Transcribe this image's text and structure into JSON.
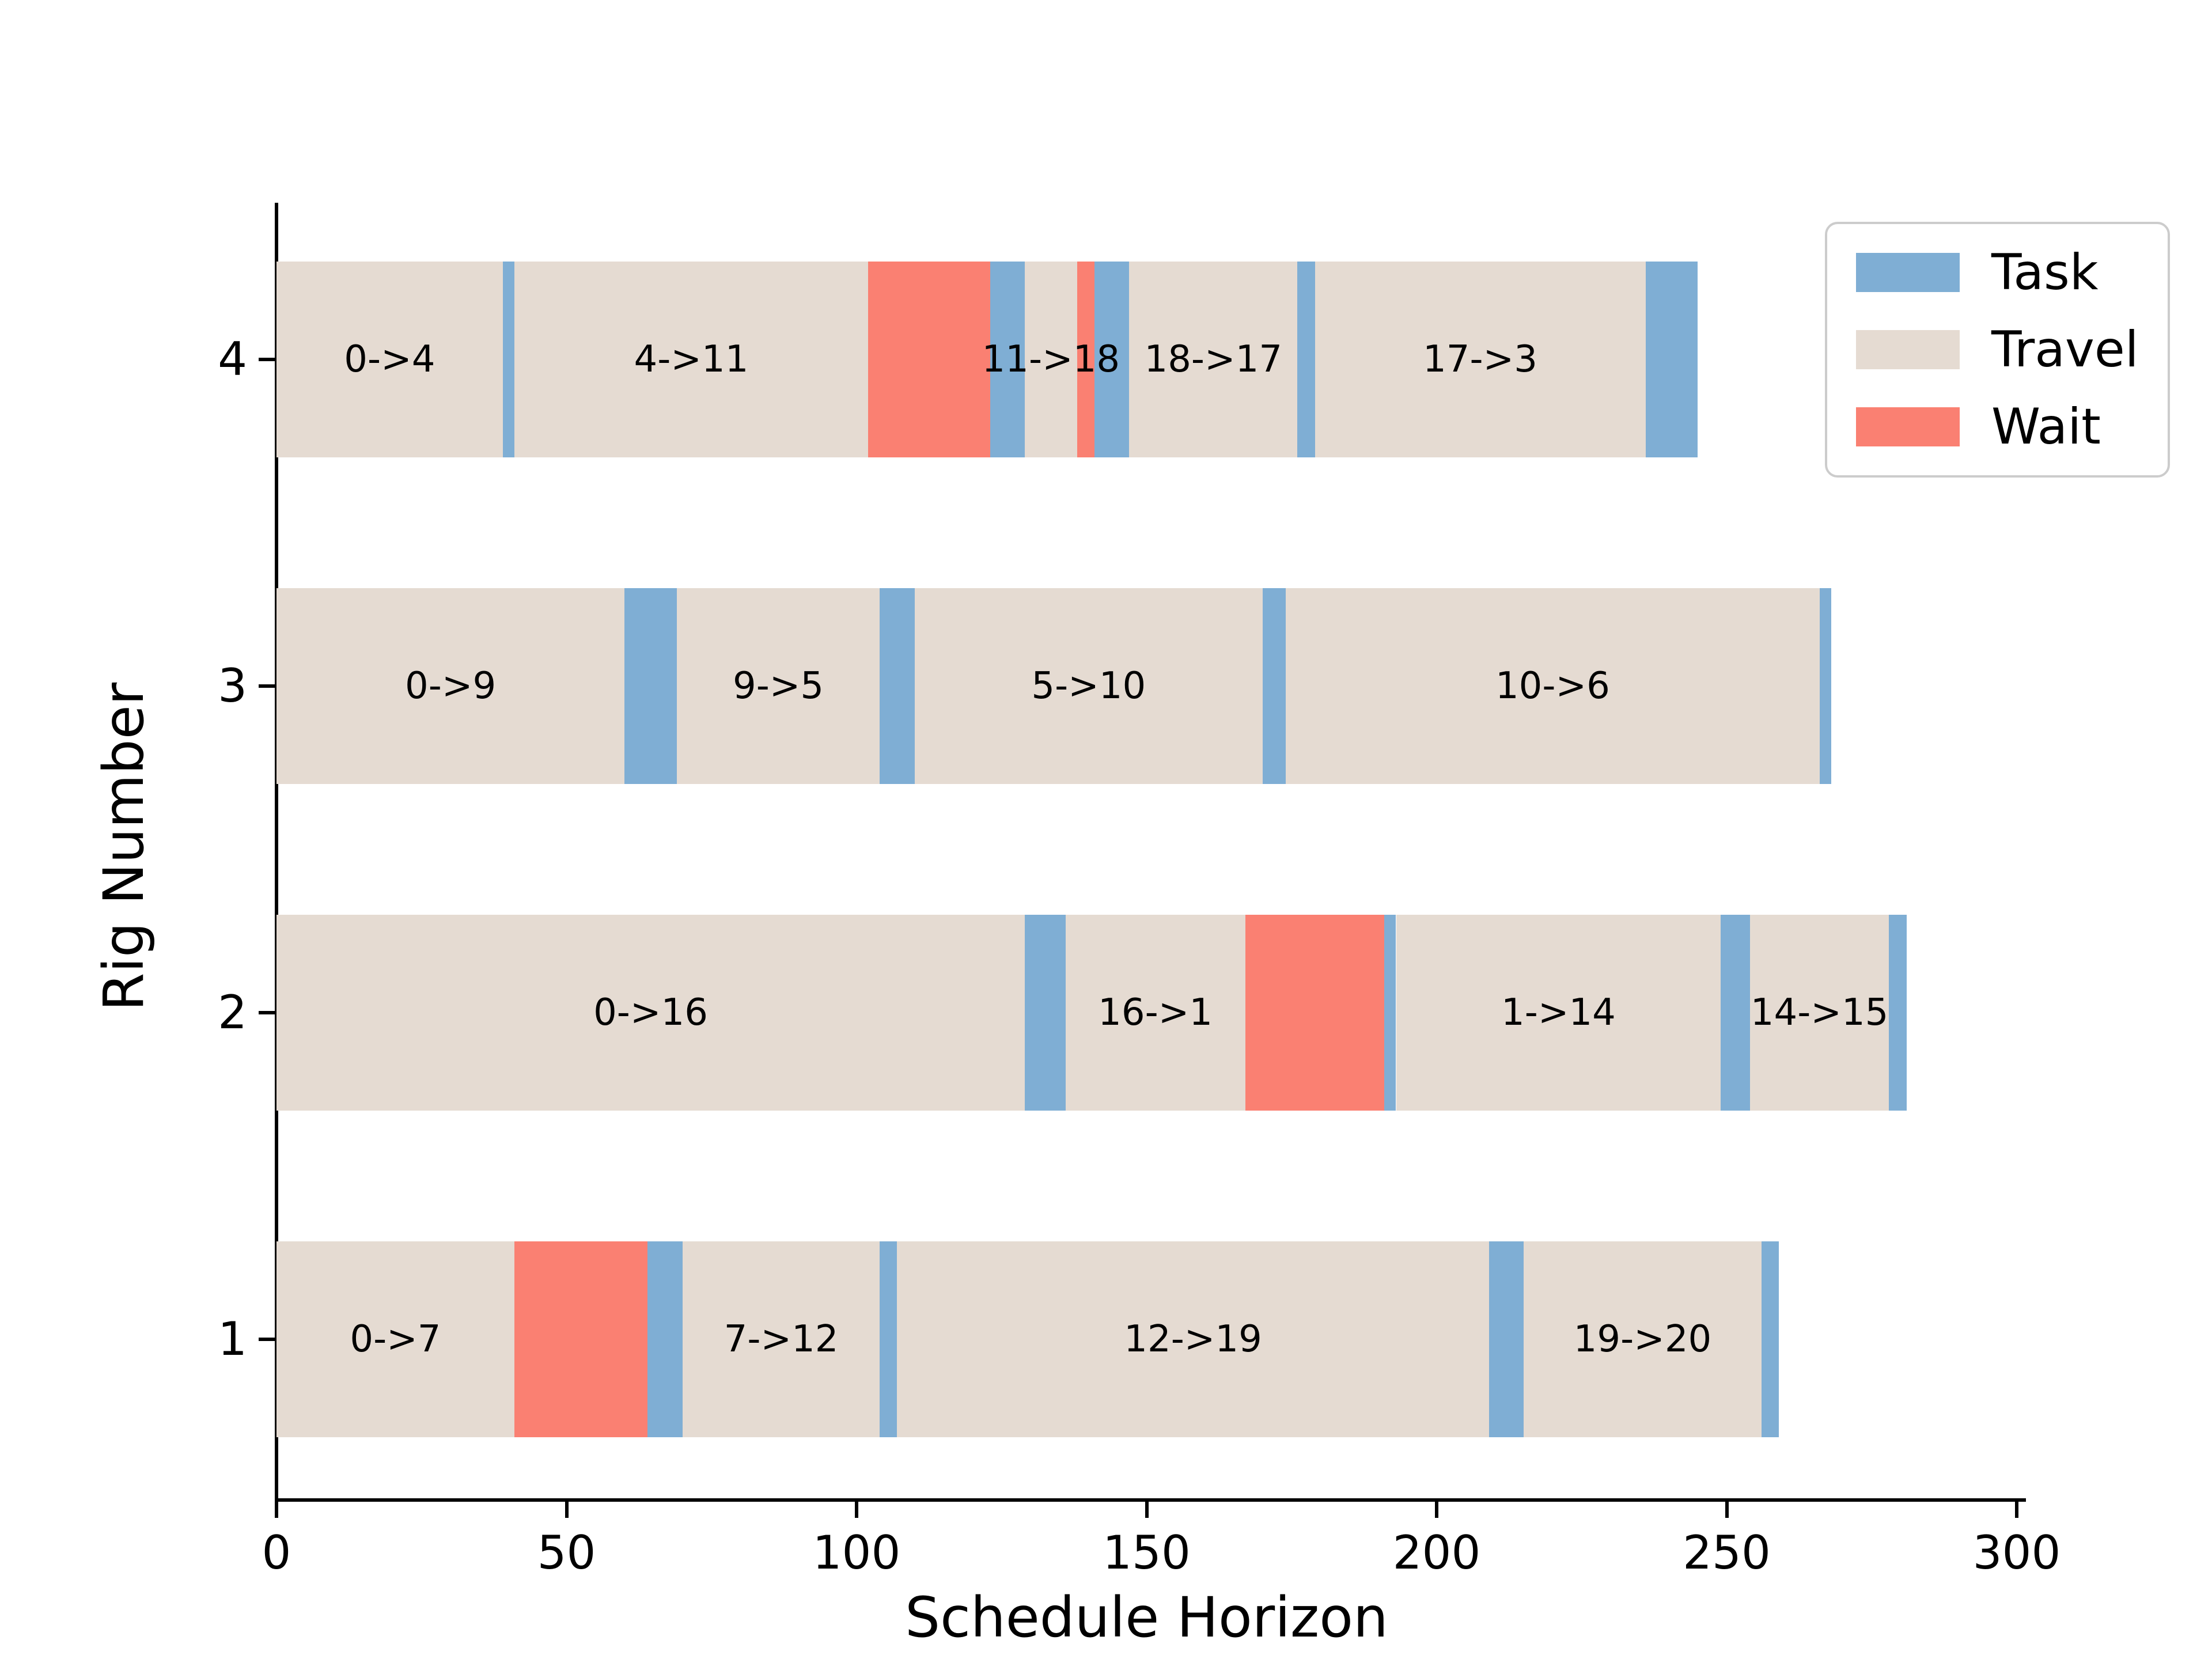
{
  "chart_data": {
    "type": "bar",
    "subtype": "gantt-schedule",
    "title": "",
    "xlabel": "Schedule Horizon",
    "ylabel": "Rig Number",
    "xlim": [
      0,
      300
    ],
    "x_ticks": [
      "0",
      "50",
      "100",
      "150",
      "200",
      "250",
      "300"
    ],
    "grid": false,
    "legend": {
      "position": "upper right",
      "entries": [
        {
          "label": "Task",
          "color": "#7FAED4"
        },
        {
          "label": "Travel",
          "color": "#E5DBD2"
        },
        {
          "label": "Wait",
          "color": "#FA8072"
        }
      ]
    },
    "colors": {
      "task": "#7FAED4",
      "travel": "#E5DBD2",
      "wait": "#FA8072"
    },
    "rigs": [
      {
        "rig": "4",
        "segments": [
          {
            "type": "travel",
            "label": "0->4",
            "start": 0,
            "end": 39
          },
          {
            "type": "task",
            "label": "",
            "start": 39,
            "end": 41
          },
          {
            "type": "travel",
            "label": "4->11",
            "start": 41,
            "end": 102
          },
          {
            "type": "wait",
            "label": "",
            "start": 102,
            "end": 123
          },
          {
            "type": "task",
            "label": "",
            "start": 123,
            "end": 129
          },
          {
            "type": "travel",
            "label": "11->18",
            "start": 129,
            "end": 138
          },
          {
            "type": "wait",
            "label": "",
            "start": 138,
            "end": 141
          },
          {
            "type": "task",
            "label": "",
            "start": 141,
            "end": 147
          },
          {
            "type": "travel",
            "label": "18->17",
            "start": 147,
            "end": 176
          },
          {
            "type": "task",
            "label": "",
            "start": 176,
            "end": 179
          },
          {
            "type": "travel",
            "label": "17->3",
            "start": 179,
            "end": 236
          },
          {
            "type": "task",
            "label": "",
            "start": 236,
            "end": 245
          }
        ]
      },
      {
        "rig": "3",
        "segments": [
          {
            "type": "travel",
            "label": "0->9",
            "start": 0,
            "end": 60
          },
          {
            "type": "task",
            "label": "",
            "start": 60,
            "end": 69
          },
          {
            "type": "travel",
            "label": "9->5",
            "start": 69,
            "end": 104
          },
          {
            "type": "task",
            "label": "",
            "start": 104,
            "end": 110
          },
          {
            "type": "travel",
            "label": "5->10",
            "start": 110,
            "end": 170
          },
          {
            "type": "task",
            "label": "",
            "start": 170,
            "end": 174
          },
          {
            "type": "travel",
            "label": "10->6",
            "start": 174,
            "end": 266
          },
          {
            "type": "task",
            "label": "",
            "start": 266,
            "end": 268
          }
        ]
      },
      {
        "rig": "2",
        "segments": [
          {
            "type": "travel",
            "label": "0->16",
            "start": 0,
            "end": 129
          },
          {
            "type": "task",
            "label": "",
            "start": 129,
            "end": 136
          },
          {
            "type": "travel",
            "label": "16->1",
            "start": 136,
            "end": 167
          },
          {
            "type": "wait",
            "label": "",
            "start": 167,
            "end": 191
          },
          {
            "type": "task",
            "label": "",
            "start": 191,
            "end": 193
          },
          {
            "type": "travel",
            "label": "1->14",
            "start": 193,
            "end": 249
          },
          {
            "type": "task",
            "label": "",
            "start": 249,
            "end": 254
          },
          {
            "type": "travel",
            "label": "14->15",
            "start": 254,
            "end": 278
          },
          {
            "type": "task",
            "label": "",
            "start": 278,
            "end": 281
          }
        ]
      },
      {
        "rig": "1",
        "segments": [
          {
            "type": "travel",
            "label": "0->7",
            "start": 0,
            "end": 41
          },
          {
            "type": "wait",
            "label": "",
            "start": 41,
            "end": 64
          },
          {
            "type": "task",
            "label": "",
            "start": 64,
            "end": 70
          },
          {
            "type": "travel",
            "label": "7->12",
            "start": 70,
            "end": 104
          },
          {
            "type": "task",
            "label": "",
            "start": 104,
            "end": 107
          },
          {
            "type": "travel",
            "label": "12->19",
            "start": 107,
            "end": 209
          },
          {
            "type": "task",
            "label": "",
            "start": 209,
            "end": 215
          },
          {
            "type": "travel",
            "label": "19->20",
            "start": 215,
            "end": 256
          },
          {
            "type": "task",
            "label": "",
            "start": 256,
            "end": 259
          }
        ]
      }
    ]
  }
}
